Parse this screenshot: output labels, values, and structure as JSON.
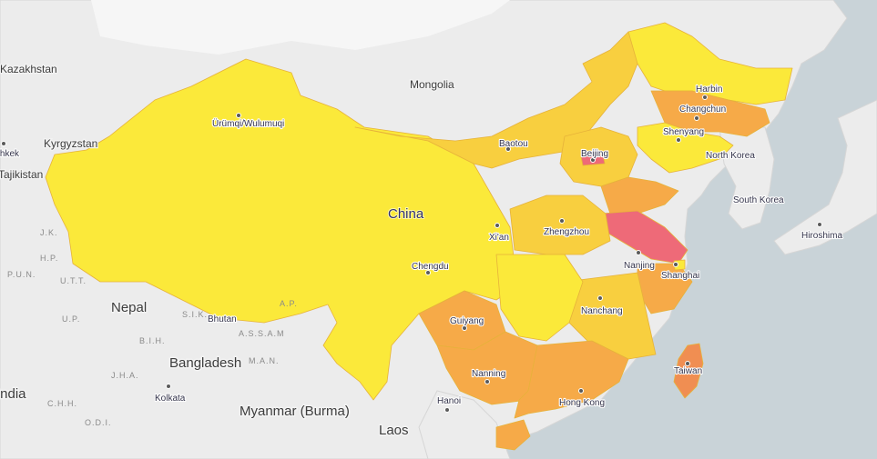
{
  "map": {
    "countries": [
      "Kazakhstan",
      "Mongolia",
      "Kyrgyzstan",
      "Tajikistan",
      "Nepal",
      "Bhutan",
      "Bangladesh",
      "Myanmar (Burma)",
      "Laos",
      "North Korea",
      "South Korea",
      "India",
      "China"
    ],
    "cities": [
      "Ürümqi/Wulumuqi",
      "Baotou",
      "Beijing",
      "Harbin",
      "Changchun",
      "Shenyang",
      "Xi'an",
      "Zhengzhou",
      "Chengdu",
      "Nanjing",
      "Shanghai",
      "Nanchang",
      "Guiyang",
      "Nanning",
      "Hong Kong",
      "Taiwan",
      "Hanoi",
      "Kolkata",
      "Hiroshima",
      "Bishkek"
    ],
    "regions": [
      "J.K.",
      "H.P.",
      "P.U.N.",
      "U.T.T.",
      "U.P.",
      "B.I.H.",
      "J.H.A.",
      "C.H.H.",
      "O.D.I.",
      "M.A.N.",
      "A.P.",
      "S.I.K.",
      "A.S.S.A.M"
    ],
    "colors": {
      "ocean": "#c9d3d8",
      "land": "#ededed",
      "level_low": "#fbe93a",
      "level_mid": "#f8cf3f",
      "level_high": "#f6aa48",
      "level_higher": "#f08e52",
      "level_top": "#ee6a78"
    }
  }
}
